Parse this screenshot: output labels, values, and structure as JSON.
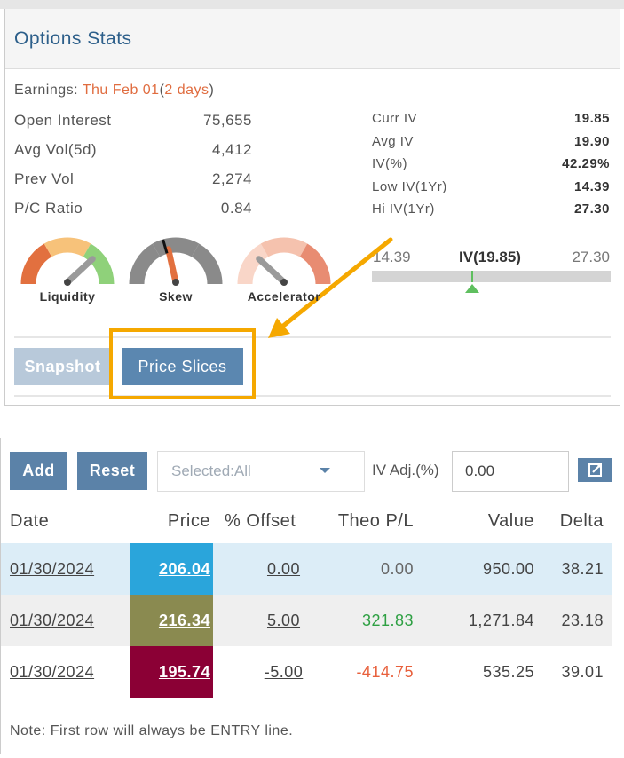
{
  "header": {
    "title": "Options Stats"
  },
  "earnings": {
    "label": "Earnings:",
    "date": "Thu Feb 01",
    "open": "(",
    "days": "2 days",
    "close": ")"
  },
  "left_stats": [
    [
      "Open Interest",
      "75,655"
    ],
    [
      "Avg Vol(5d)",
      "4,412"
    ],
    [
      "Prev Vol",
      "2,274"
    ],
    [
      "P/C Ratio",
      "0.84"
    ]
  ],
  "right_stats": [
    [
      "Curr IV",
      "19.85"
    ],
    [
      "Avg IV",
      "19.90"
    ],
    [
      "IV(%)",
      "42.29%"
    ],
    [
      "Low IV(1Yr)",
      "14.39"
    ],
    [
      "Hi IV(1Yr)",
      "27.30"
    ]
  ],
  "gauges": [
    "Liquidity",
    "Skew",
    "Accelerator"
  ],
  "iv_bar": {
    "low": "14.39",
    "current": "IV(19.85)",
    "high": "27.30"
  },
  "tabs": [
    "Snapshot",
    "Price Slices"
  ],
  "toolbar": {
    "add": "Add",
    "reset": "Reset",
    "select": "Selected:All",
    "iv_adj_label": "IV Adj.(%)",
    "iv_adj_value": "0.00"
  },
  "table": {
    "headers": [
      "Date",
      "Price",
      "% Offset",
      "Theo P/L",
      "Value",
      "Delta"
    ],
    "rows": [
      [
        "01/30/2024",
        "206.04",
        "0.00",
        "0.00",
        "950.00",
        "38.21"
      ],
      [
        "01/30/2024",
        "216.34",
        "5.00",
        "321.83",
        "1,271.84",
        "23.18"
      ],
      [
        "01/30/2024",
        "195.74",
        "-5.00",
        "-414.75",
        "535.25",
        "39.01"
      ]
    ]
  },
  "note": "Note: First row will always be ENTRY line."
}
